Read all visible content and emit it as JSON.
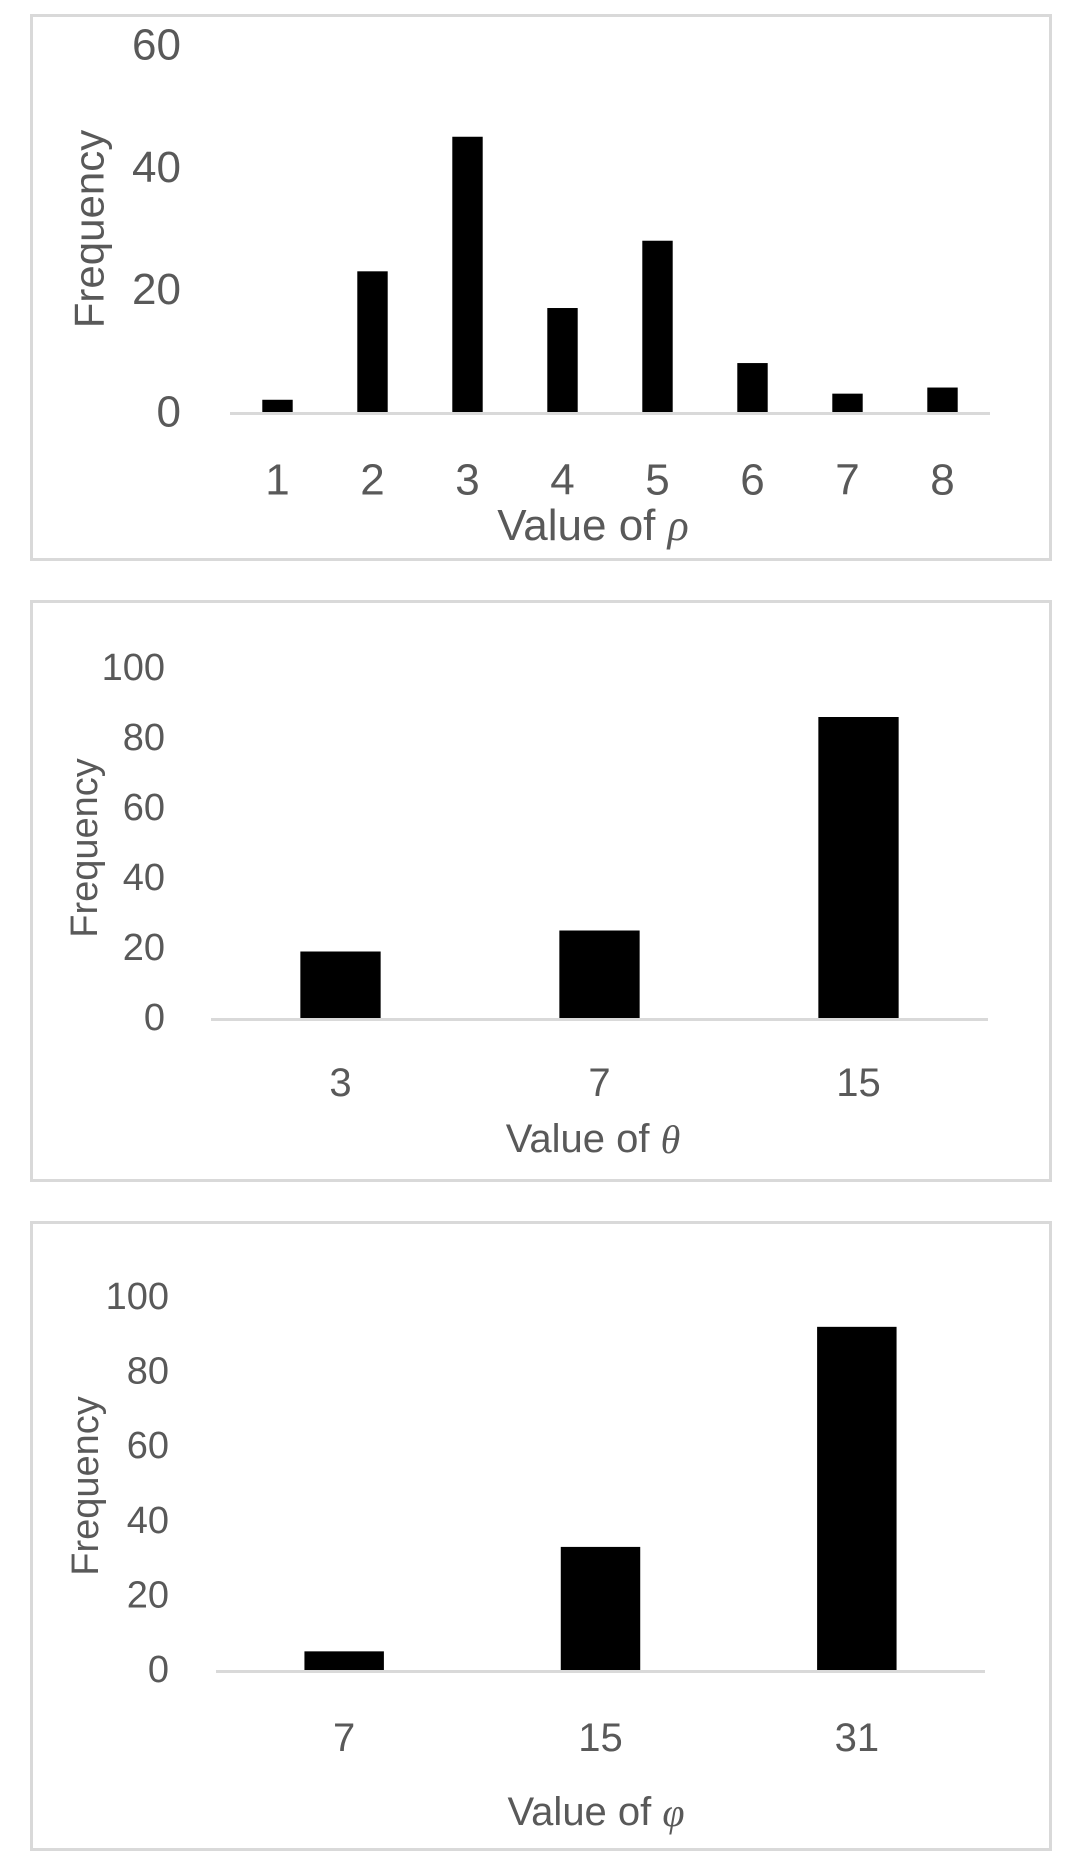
{
  "chart_data": [
    {
      "type": "bar",
      "categories": [
        "1",
        "2",
        "3",
        "4",
        "5",
        "6",
        "7",
        "8"
      ],
      "values": [
        2,
        23,
        45,
        17,
        28,
        8,
        3,
        4
      ],
      "xlabel_text": "Value of ",
      "xlabel_symbol": "ρ",
      "ylabel": "Frequency",
      "ylim": [
        0,
        60
      ],
      "yticks": [
        "0",
        "20",
        "40",
        "60"
      ],
      "grid": false,
      "legend": "none",
      "bar_color": "#000000",
      "axis_color": "#d9d9d9",
      "text_color": "#595959"
    },
    {
      "type": "bar",
      "categories": [
        "3",
        "7",
        "15"
      ],
      "values": [
        19,
        25,
        86
      ],
      "xlabel_text": "Value of ",
      "xlabel_symbol": "θ",
      "ylabel": "Frequency",
      "ylim": [
        0,
        100
      ],
      "yticks": [
        "0",
        "20",
        "40",
        "60",
        "80",
        "100"
      ],
      "grid": false,
      "legend": "none",
      "bar_color": "#000000",
      "axis_color": "#d9d9d9",
      "text_color": "#595959"
    },
    {
      "type": "bar",
      "categories": [
        "7",
        "15",
        "31"
      ],
      "values": [
        5,
        33,
        92
      ],
      "xlabel_text": "Value of ",
      "xlabel_symbol": "φ",
      "ylabel": "Frequency",
      "ylim": [
        0,
        100
      ],
      "yticks": [
        "0",
        "20",
        "40",
        "60",
        "80",
        "100"
      ],
      "grid": false,
      "legend": "none",
      "bar_color": "#000000",
      "axis_color": "#d9d9d9",
      "text_color": "#595959"
    }
  ]
}
